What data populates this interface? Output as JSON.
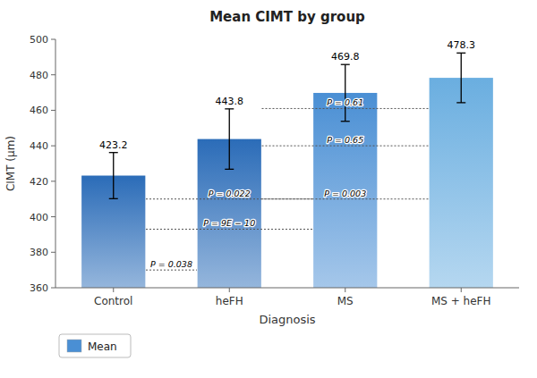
{
  "chart_data": {
    "type": "bar",
    "title": "Mean CIMT by group",
    "xlabel": "Diagnosis",
    "ylabel": "CIMT (μm)",
    "categories": [
      "Control",
      "heFH",
      "MS",
      "MS + heFH"
    ],
    "series": [
      {
        "name": "Mean",
        "color": "#4a8fd4",
        "colors": [
          "#2b6cb8",
          "#2b6cb8",
          "#4a8fd4",
          "#6aaee0"
        ],
        "values": [
          423.2,
          443.8,
          469.8,
          478.3
        ],
        "errors": [
          13,
          17,
          16,
          14
        ]
      }
    ],
    "ylim": [
      360,
      500
    ],
    "yticks": [
      360,
      380,
      400,
      420,
      440,
      460,
      480,
      500
    ],
    "data_labels": true,
    "legend": "lower left",
    "annotations": [
      {
        "text": "P = 0.038",
        "y": 370,
        "x1": 0.28,
        "x2": 0.72
      },
      {
        "text": "P = 0.022",
        "y": 410,
        "x1": 0.28,
        "x2": 1.72
      },
      {
        "text": "P = 9E − 10",
        "y": 393,
        "x1": 0.28,
        "x2": 1.72
      },
      {
        "text": "P = 0.61",
        "y": 461,
        "x1": 1.28,
        "x2": 2.72
      },
      {
        "text": "P = 0.65",
        "y": 440,
        "x1": 1.28,
        "x2": 2.72
      },
      {
        "text": "P = 0.003",
        "y": 410,
        "x1": 1.28,
        "x2": 2.72
      }
    ]
  }
}
